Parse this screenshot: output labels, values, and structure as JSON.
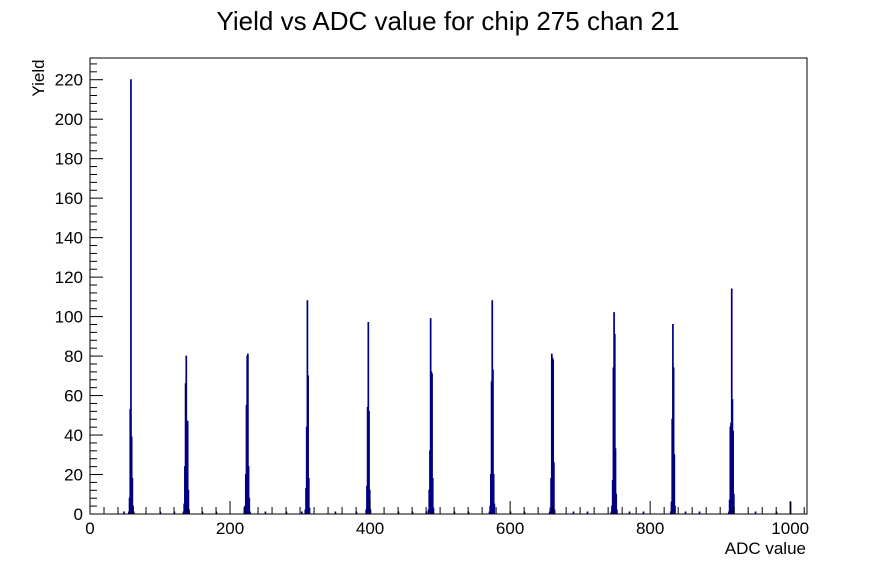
{
  "chart_data": {
    "type": "bar",
    "title": "Yield vs ADC value for chip 275 chan 21",
    "xlabel": "ADC value",
    "ylabel": "Yield",
    "xlim": [
      0,
      1024
    ],
    "ylim": [
      0,
      231
    ],
    "x_ticks": [
      0,
      200,
      400,
      600,
      800,
      1000
    ],
    "y_ticks": [
      0,
      20,
      40,
      60,
      80,
      100,
      120,
      140,
      160,
      180,
      200,
      220
    ],
    "bin_width": 1,
    "series": [
      {
        "color": "#000080",
        "points": [
          [
            48,
            1
          ],
          [
            55,
            1
          ],
          [
            56,
            8
          ],
          [
            57,
            53
          ],
          [
            58,
            220
          ],
          [
            59,
            39
          ],
          [
            60,
            18
          ],
          [
            61,
            4
          ],
          [
            62,
            1
          ],
          [
            100,
            1
          ],
          [
            120,
            1
          ],
          [
            133,
            1
          ],
          [
            134,
            5
          ],
          [
            135,
            24
          ],
          [
            136,
            66
          ],
          [
            137,
            80
          ],
          [
            138,
            29
          ],
          [
            139,
            47
          ],
          [
            140,
            12
          ],
          [
            141,
            2
          ],
          [
            160,
            1
          ],
          [
            180,
            1
          ],
          [
            220,
            1
          ],
          [
            221,
            4
          ],
          [
            222,
            20
          ],
          [
            223,
            55
          ],
          [
            224,
            80
          ],
          [
            225,
            81
          ],
          [
            226,
            24
          ],
          [
            227,
            8
          ],
          [
            228,
            1
          ],
          [
            250,
            1
          ],
          [
            280,
            1
          ],
          [
            302,
            1
          ],
          [
            307,
            2
          ],
          [
            308,
            13
          ],
          [
            309,
            44
          ],
          [
            310,
            108
          ],
          [
            311,
            70
          ],
          [
            312,
            18
          ],
          [
            313,
            3
          ],
          [
            350,
            1
          ],
          [
            380,
            1
          ],
          [
            394,
            2
          ],
          [
            395,
            14
          ],
          [
            396,
            54
          ],
          [
            397,
            97
          ],
          [
            398,
            52
          ],
          [
            399,
            12
          ],
          [
            400,
            2
          ],
          [
            440,
            1
          ],
          [
            460,
            1
          ],
          [
            480,
            1
          ],
          [
            483,
            2
          ],
          [
            484,
            12
          ],
          [
            485,
            32
          ],
          [
            486,
            99
          ],
          [
            487,
            72
          ],
          [
            488,
            71
          ],
          [
            489,
            18
          ],
          [
            490,
            3
          ],
          [
            520,
            1
          ],
          [
            540,
            1
          ],
          [
            570,
            1
          ],
          [
            571,
            4
          ],
          [
            572,
            20
          ],
          [
            573,
            67
          ],
          [
            574,
            108
          ],
          [
            575,
            73
          ],
          [
            576,
            20
          ],
          [
            577,
            5
          ],
          [
            600,
            1
          ],
          [
            620,
            1
          ],
          [
            656,
            1
          ],
          [
            657,
            3
          ],
          [
            658,
            18
          ],
          [
            659,
            81
          ],
          [
            660,
            79
          ],
          [
            661,
            78
          ],
          [
            662,
            26
          ],
          [
            663,
            2
          ],
          [
            690,
            1
          ],
          [
            710,
            1
          ],
          [
            744,
            1
          ],
          [
            745,
            4
          ],
          [
            746,
            17
          ],
          [
            747,
            74
          ],
          [
            748,
            102
          ],
          [
            749,
            91
          ],
          [
            750,
            33
          ],
          [
            751,
            10
          ],
          [
            752,
            2
          ],
          [
            770,
            1
          ],
          [
            790,
            1
          ],
          [
            829,
            1
          ],
          [
            830,
            6
          ],
          [
            831,
            48
          ],
          [
            832,
            96
          ],
          [
            833,
            74
          ],
          [
            834,
            30
          ],
          [
            835,
            4
          ],
          [
            850,
            1
          ],
          [
            870,
            1
          ],
          [
            912,
            1
          ],
          [
            913,
            7
          ],
          [
            914,
            44
          ],
          [
            915,
            46
          ],
          [
            916,
            114
          ],
          [
            917,
            58
          ],
          [
            918,
            42
          ],
          [
            919,
            10
          ],
          [
            950,
            1
          ],
          [
            980,
            1
          ],
          [
            1000,
            6
          ]
        ]
      }
    ]
  }
}
